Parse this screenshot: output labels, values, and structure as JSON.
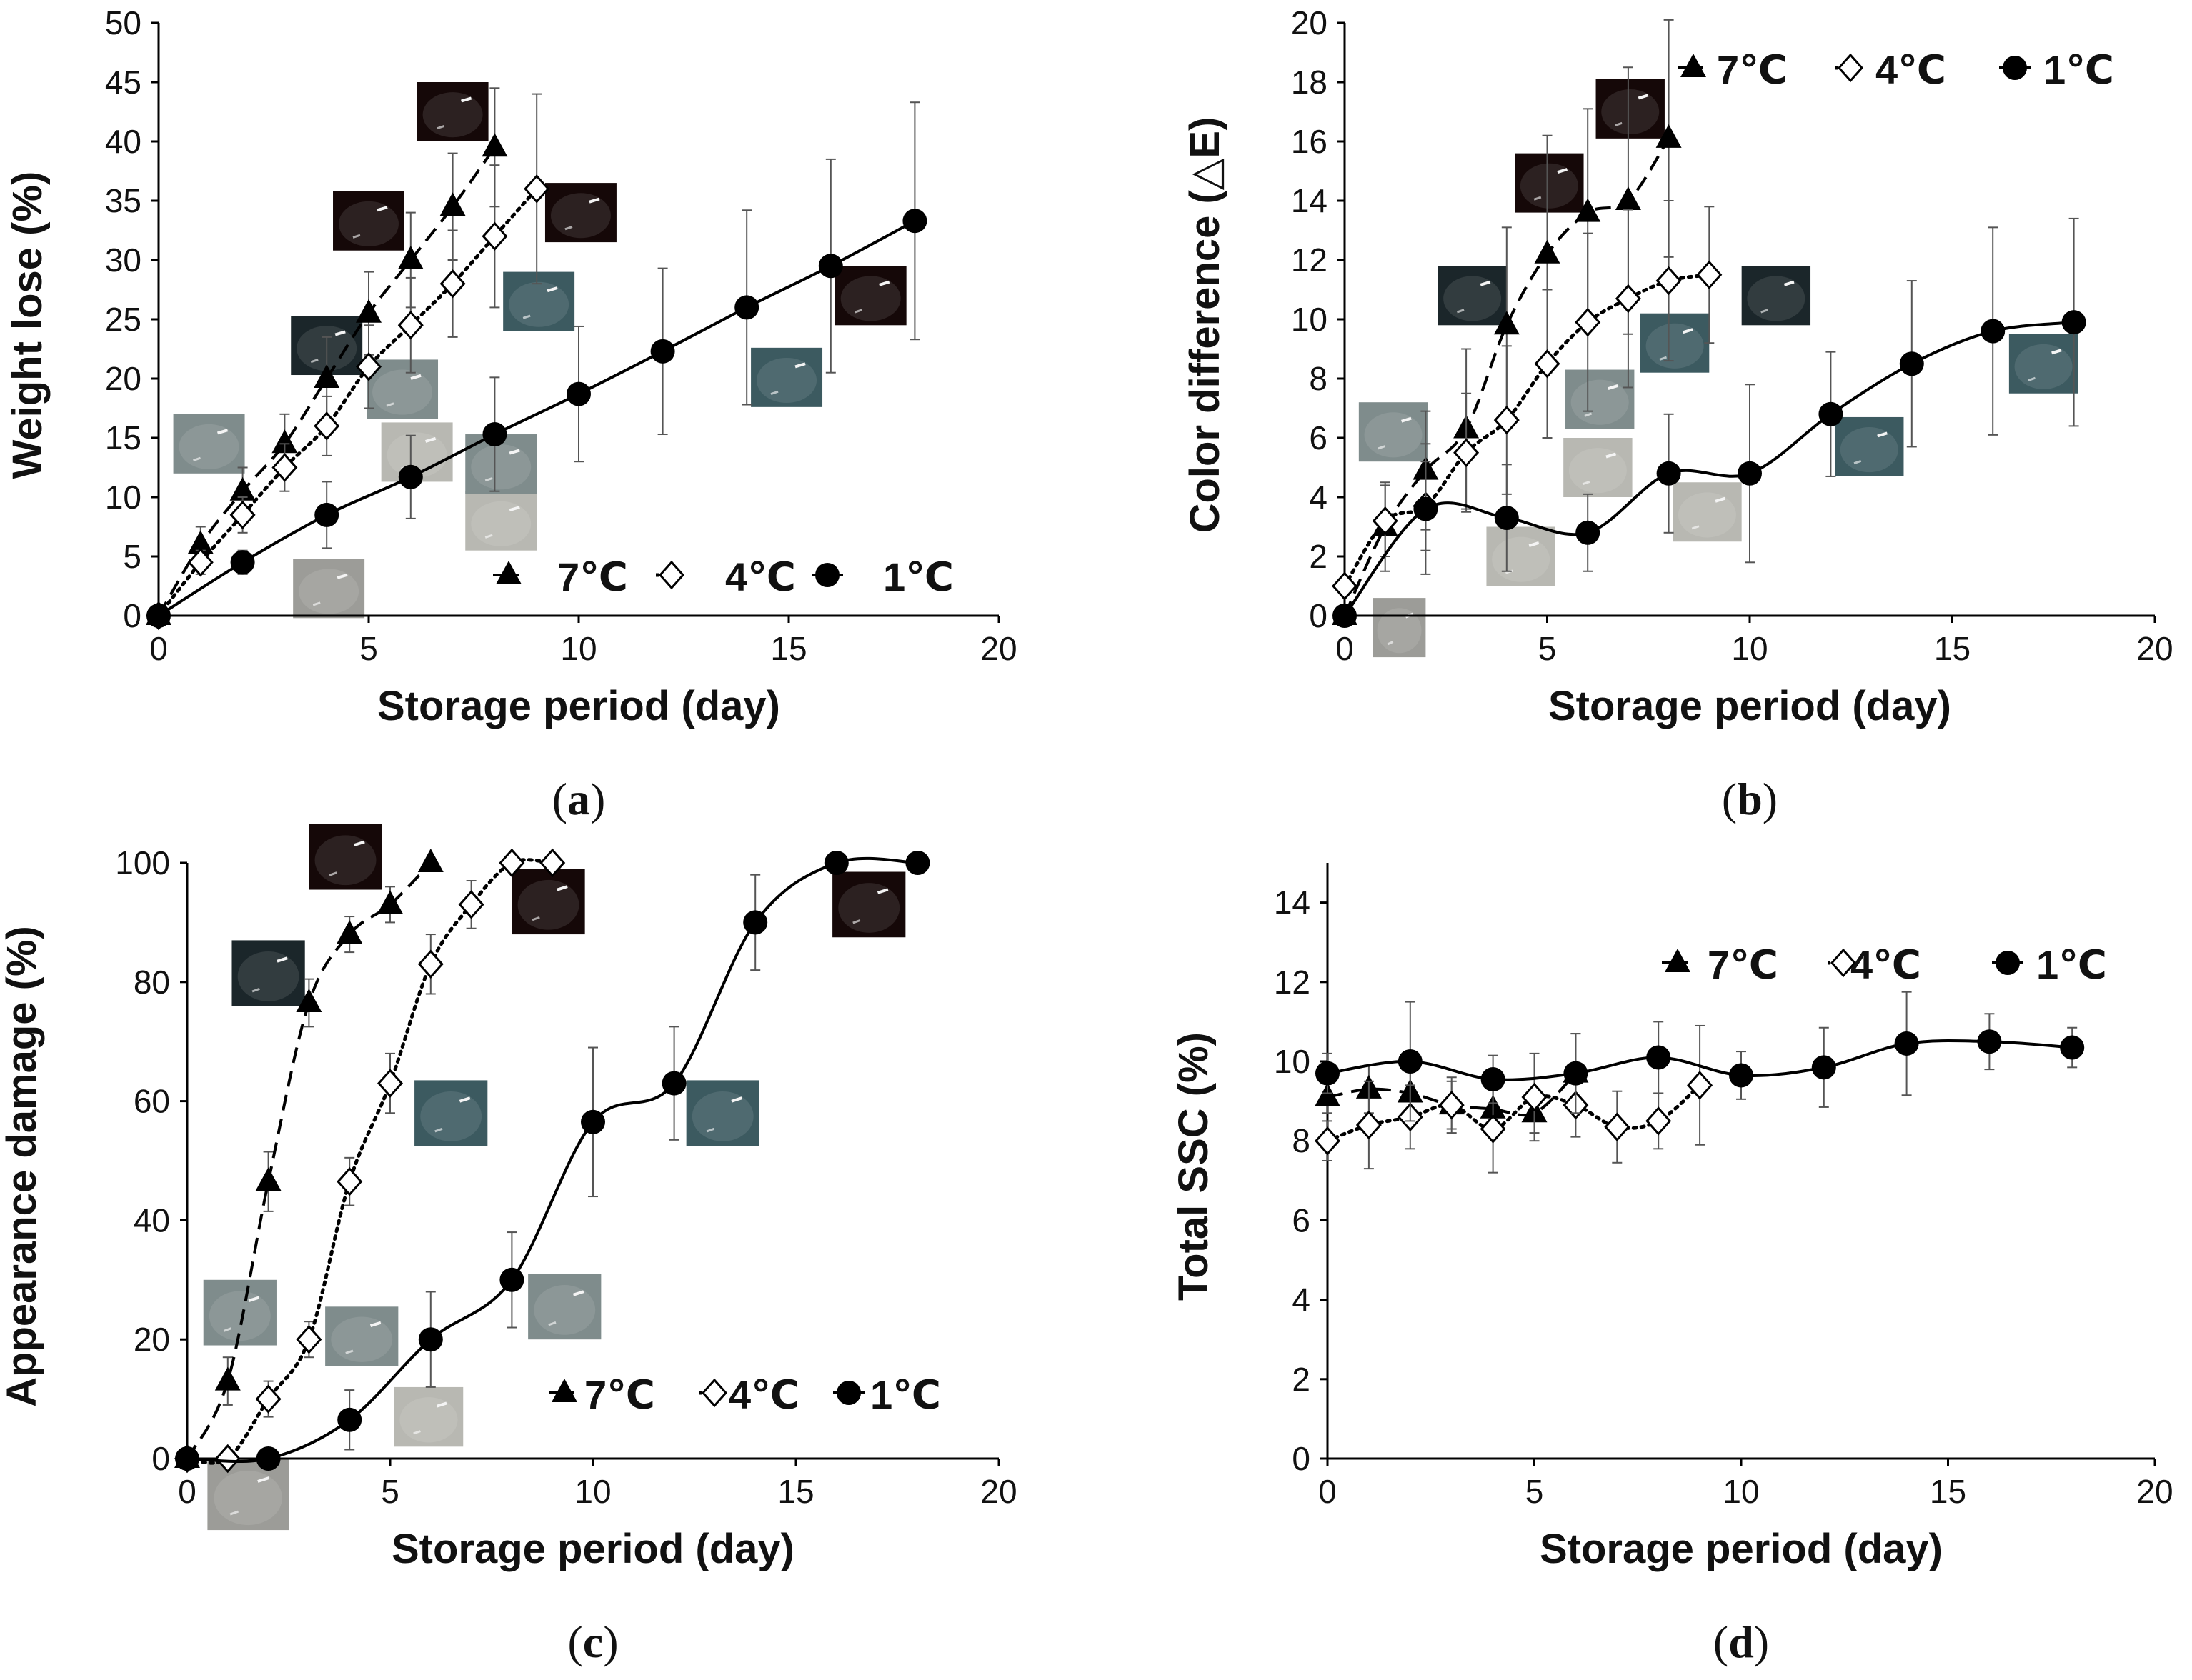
{
  "figure": {
    "symbols": {
      "triangle": "▲",
      "diamond": "◇",
      "circle": "●"
    },
    "photo_colors": {
      "fresh": "#9c9c98",
      "light": "#b8b8b2",
      "grey": "#7f8c8c",
      "teal": "#3c5a60",
      "dark": "#1b262a",
      "black": "#150808"
    }
  },
  "chart_data": [
    {
      "id": "a",
      "type": "line",
      "caption": "(a)",
      "caption_letter": "a",
      "title": "",
      "xlabel": "Storage period (day)",
      "ylabel": "Weight lose (%)",
      "xlim": [
        0,
        20
      ],
      "ylim": [
        0,
        50
      ],
      "xticks": [
        "0",
        "5",
        "10",
        "15",
        "20"
      ],
      "yticks": [
        "0",
        "5",
        "10",
        "15",
        "20",
        "25",
        "30",
        "35",
        "40",
        "45",
        "50"
      ],
      "legend_position": "bottom-right",
      "series": [
        {
          "name": "7℃",
          "label": "7℃",
          "marker": "triangle",
          "line": "dashed",
          "x": [
            0,
            1,
            2,
            3,
            4,
            5,
            6,
            7,
            8
          ],
          "y": [
            0,
            6,
            10.5,
            14.5,
            20,
            25.5,
            30,
            34.5,
            39.5
          ],
          "err": [
            0,
            1.5,
            2,
            2.5,
            3.5,
            3.5,
            4,
            4.5,
            5
          ]
        },
        {
          "name": "4℃",
          "label": "4℃",
          "marker": "diamond",
          "line": "dotted",
          "x": [
            0,
            1,
            2,
            3,
            4,
            5,
            6,
            7,
            8,
            9
          ],
          "y": [
            0,
            4.5,
            8.5,
            12.5,
            16,
            21,
            24.5,
            28,
            32,
            36
          ],
          "err": [
            0,
            1,
            1.5,
            2,
            2.5,
            3.5,
            4,
            4.5,
            6,
            8
          ]
        },
        {
          "name": "1℃",
          "label": "1℃",
          "marker": "circle",
          "line": "solid",
          "x": [
            0,
            2,
            4,
            6,
            8,
            10,
            12,
            14,
            16,
            18
          ],
          "y": [
            0,
            4.5,
            8.5,
            11.7,
            15.3,
            18.7,
            22.3,
            26,
            29.5,
            33.3
          ],
          "err": [
            0,
            1,
            2.8,
            3.5,
            4.8,
            5.7,
            7,
            8.2,
            9,
            10
          ]
        }
      ],
      "photos": [
        {
          "tone": "fresh",
          "x": 3.2,
          "y": -0.2,
          "w": 1.7,
          "h": 5
        },
        {
          "tone": "light",
          "x": 7.3,
          "y": 5.5,
          "w": 1.7,
          "h": 5
        },
        {
          "tone": "light",
          "x": 5.3,
          "y": 11.3,
          "w": 1.7,
          "h": 5
        },
        {
          "tone": "grey",
          "x": 0.35,
          "y": 12,
          "w": 1.7,
          "h": 5
        },
        {
          "tone": "grey",
          "x": 4.95,
          "y": 16.6,
          "w": 1.7,
          "h": 5
        },
        {
          "tone": "grey",
          "x": 7.3,
          "y": 10.3,
          "w": 1.7,
          "h": 5
        },
        {
          "tone": "teal",
          "x": 8.2,
          "y": 24,
          "w": 1.7,
          "h": 5
        },
        {
          "tone": "teal",
          "x": 14.1,
          "y": 17.6,
          "w": 1.7,
          "h": 5
        },
        {
          "tone": "dark",
          "x": 3.15,
          "y": 20.3,
          "w": 1.7,
          "h": 5
        },
        {
          "tone": "black",
          "x": 4.15,
          "y": 30.8,
          "w": 1.7,
          "h": 5
        },
        {
          "tone": "black",
          "x": 6.15,
          "y": 40,
          "w": 1.7,
          "h": 5
        },
        {
          "tone": "black",
          "x": 9.2,
          "y": 31.5,
          "w": 1.7,
          "h": 5
        },
        {
          "tone": "black",
          "x": 16.1,
          "y": 24.5,
          "w": 1.7,
          "h": 5
        }
      ]
    },
    {
      "id": "b",
      "type": "line",
      "caption": "(b)",
      "caption_letter": "b",
      "title": "",
      "xlabel": "Storage period (day)",
      "ylabel": "Color difference (△E)",
      "xlim": [
        0,
        20
      ],
      "ylim": [
        0,
        20
      ],
      "xticks": [
        "0",
        "5",
        "10",
        "15",
        "20"
      ],
      "yticks": [
        "0",
        "2",
        "4",
        "6",
        "8",
        "10",
        "12",
        "14",
        "16",
        "18",
        "20"
      ],
      "legend_position": "top-right",
      "series": [
        {
          "name": "7℃",
          "label": "7℃",
          "marker": "triangle",
          "line": "dashed",
          "x": [
            0,
            1,
            2,
            3,
            4,
            5,
            6,
            7,
            8
          ],
          "y": [
            0,
            3,
            4.9,
            6.3,
            9.8,
            12.2,
            13.6,
            14,
            16.1
          ],
          "err": [
            0,
            1.5,
            2,
            2.7,
            3.3,
            4,
            3.5,
            4.5,
            4
          ]
        },
        {
          "name": "4℃",
          "label": "4℃",
          "marker": "diamond",
          "line": "dotted",
          "x": [
            0,
            1,
            2,
            3,
            4,
            5,
            6,
            7,
            8,
            9
          ],
          "y": [
            1,
            3.2,
            3.7,
            5.5,
            6.6,
            8.5,
            9.9,
            10.7,
            11.3,
            11.5
          ],
          "err": [
            0,
            1.2,
            1.5,
            2,
            2.5,
            2.5,
            3,
            3,
            2.7,
            2.3
          ]
        },
        {
          "name": "1℃",
          "label": "1℃",
          "marker": "circle",
          "line": "solid",
          "x": [
            0,
            2,
            4,
            6,
            8,
            10,
            12,
            14,
            16,
            18
          ],
          "y": [
            0,
            3.6,
            3.3,
            2.8,
            4.8,
            4.8,
            6.8,
            8.5,
            9.6,
            9.9
          ],
          "err": [
            0,
            2.2,
            1.8,
            1.3,
            2,
            3,
            2.1,
            2.8,
            3.5,
            3.5
          ]
        }
      ],
      "photos": [
        {
          "tone": "fresh",
          "x": 0.7,
          "y": -1.4,
          "w": 1.3,
          "h": 2
        },
        {
          "tone": "light",
          "x": 3.5,
          "y": 1,
          "w": 1.7,
          "h": 2
        },
        {
          "tone": "light",
          "x": 8.1,
          "y": 2.5,
          "w": 1.7,
          "h": 2
        },
        {
          "tone": "light",
          "x": 5.4,
          "y": 4,
          "w": 1.7,
          "h": 2
        },
        {
          "tone": "grey",
          "x": 0.35,
          "y": 5.2,
          "w": 1.7,
          "h": 2
        },
        {
          "tone": "grey",
          "x": 5.45,
          "y": 6.3,
          "w": 1.7,
          "h": 2
        },
        {
          "tone": "teal",
          "x": 7.3,
          "y": 8.2,
          "w": 1.7,
          "h": 2
        },
        {
          "tone": "teal",
          "x": 12.1,
          "y": 4.7,
          "w": 1.7,
          "h": 2
        },
        {
          "tone": "teal",
          "x": 16.4,
          "y": 7.5,
          "w": 1.7,
          "h": 2
        },
        {
          "tone": "dark",
          "x": 2.3,
          "y": 9.8,
          "w": 1.7,
          "h": 2
        },
        {
          "tone": "dark",
          "x": 9.8,
          "y": 9.8,
          "w": 1.7,
          "h": 2
        },
        {
          "tone": "black",
          "x": 4.2,
          "y": 13.6,
          "w": 1.7,
          "h": 2
        },
        {
          "tone": "black",
          "x": 6.2,
          "y": 16.1,
          "w": 1.7,
          "h": 2
        }
      ]
    },
    {
      "id": "c",
      "type": "line",
      "caption": "(c)",
      "caption_letter": "c",
      "title": "",
      "xlabel": "Storage period (day)",
      "ylabel": "Appearance damage (%)",
      "xlim": [
        0,
        20
      ],
      "ylim": [
        0,
        100
      ],
      "xticks": [
        "0",
        "5",
        "10",
        "15",
        "20"
      ],
      "yticks": [
        "0",
        "20",
        "40",
        "60",
        "80",
        "100"
      ],
      "legend_position": "bottom-right",
      "series": [
        {
          "name": "7℃",
          "label": "7℃",
          "marker": "triangle",
          "line": "dashed",
          "x": [
            0,
            1,
            2,
            3,
            4,
            5,
            6
          ],
          "y": [
            0,
            13,
            46.5,
            76.5,
            88,
            93,
            100
          ],
          "err": [
            0,
            4,
            5,
            4,
            3,
            3,
            0
          ]
        },
        {
          "name": "4℃",
          "label": "4℃",
          "marker": "diamond",
          "line": "dotted",
          "x": [
            0,
            1,
            2,
            3,
            4,
            5,
            6,
            7,
            8,
            9
          ],
          "y": [
            0,
            0,
            10,
            20,
            46.5,
            63,
            83,
            93,
            100,
            100
          ],
          "err": [
            0,
            0,
            3,
            3,
            4,
            5,
            5,
            4,
            0,
            0
          ]
        },
        {
          "name": "1℃",
          "label": "1℃",
          "marker": "circle",
          "line": "solid",
          "x": [
            0,
            2,
            4,
            6,
            8,
            10,
            12,
            14,
            16,
            18
          ],
          "y": [
            0,
            0,
            6.5,
            20,
            30,
            56.5,
            63,
            90,
            100,
            100
          ],
          "err": [
            0,
            0,
            5,
            8,
            8,
            12.5,
            9.5,
            8,
            0,
            0
          ]
        }
      ],
      "photos": [
        {
          "tone": "fresh",
          "x": 0.5,
          "y": -12,
          "w": 2,
          "h": 12
        },
        {
          "tone": "light",
          "x": 5.1,
          "y": 2,
          "w": 1.7,
          "h": 10
        },
        {
          "tone": "grey",
          "x": 0.4,
          "y": 19,
          "w": 1.8,
          "h": 11
        },
        {
          "tone": "grey",
          "x": 3.4,
          "y": 15.5,
          "w": 1.8,
          "h": 10
        },
        {
          "tone": "grey",
          "x": 8.4,
          "y": 20,
          "w": 1.8,
          "h": 11
        },
        {
          "tone": "teal",
          "x": 5.6,
          "y": 52.5,
          "w": 1.8,
          "h": 11
        },
        {
          "tone": "teal",
          "x": 12.3,
          "y": 52.5,
          "w": 1.8,
          "h": 11
        },
        {
          "tone": "dark",
          "x": 1.1,
          "y": 76,
          "w": 1.8,
          "h": 11
        },
        {
          "tone": "black",
          "x": 3.0,
          "y": 95.5,
          "w": 1.8,
          "h": 11
        },
        {
          "tone": "black",
          "x": 8.0,
          "y": 88,
          "w": 1.8,
          "h": 11
        },
        {
          "tone": "black",
          "x": 15.9,
          "y": 87.5,
          "w": 1.8,
          "h": 11
        }
      ]
    },
    {
      "id": "d",
      "type": "line",
      "caption": "(d)",
      "caption_letter": "d",
      "title": "",
      "xlabel": "Storage period (day)",
      "ylabel": "Total SSC (%)",
      "xlim": [
        0,
        20
      ],
      "ylim": [
        0,
        15
      ],
      "xticks": [
        "0",
        "5",
        "10",
        "15",
        "20"
      ],
      "yticks": [
        "0",
        "2",
        "4",
        "6",
        "8",
        "10",
        "12",
        "14"
      ],
      "legend_position": "top-right",
      "series": [
        {
          "name": "7℃",
          "label": "7℃",
          "marker": "triangle",
          "line": "dashed",
          "x": [
            0,
            1,
            2,
            3,
            4,
            5,
            6
          ],
          "y": [
            9.1,
            9.3,
            9.2,
            8.9,
            8.8,
            8.7,
            9.7
          ],
          "err": [
            0.4,
            0.6,
            0.7,
            0.6,
            0.6,
            0.5,
            1
          ]
        },
        {
          "name": "4℃",
          "label": "4℃",
          "marker": "diamond",
          "line": "dotted",
          "x": [
            0,
            1,
            2,
            3,
            4,
            5,
            6,
            7,
            8,
            9
          ],
          "y": [
            8,
            8.4,
            8.6,
            8.9,
            8.3,
            9.1,
            8.9,
            8.35,
            8.5,
            9.4
          ],
          "err": [
            0.5,
            1.1,
            0.8,
            0.7,
            1.1,
            1.1,
            0.8,
            0.9,
            0.7,
            1.5
          ]
        },
        {
          "name": "1℃",
          "label": "1℃",
          "marker": "circle",
          "line": "solid",
          "x": [
            0,
            2,
            4,
            6,
            8,
            10,
            12,
            14,
            16,
            18
          ],
          "y": [
            9.7,
            10,
            9.55,
            9.7,
            10.1,
            9.65,
            9.85,
            10.45,
            10.5,
            10.35
          ],
          "err": [
            0.5,
            1.5,
            0.6,
            1,
            0.9,
            0.6,
            1,
            1.3,
            0.7,
            0.5
          ]
        }
      ],
      "photos": []
    }
  ]
}
